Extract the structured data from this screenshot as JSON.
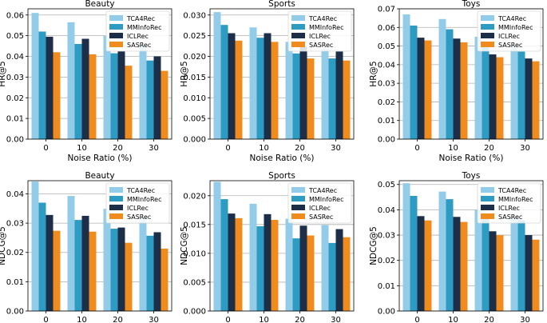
{
  "series_names": [
    "TCA4Rec",
    "MMInfoRec",
    "ICLRec",
    "SASRec"
  ],
  "colors": {
    "TCA4Rec": "#92CCE8",
    "MMInfoRec": "#2E9CC2",
    "ICLRec": "#1C2E48",
    "SASRec": "#F08C1E"
  },
  "chart_data": [
    {
      "type": "bar",
      "title": "Beauty",
      "xlabel": "Noise Ratio (%)",
      "ylabel": "HR@5",
      "categories": [
        "0",
        "10",
        "20",
        "30"
      ],
      "ylim": [
        0,
        0.063
      ],
      "yticks": [
        "0.00",
        "0.01",
        "0.02",
        "0.03",
        "0.04",
        "0.05",
        "0.06"
      ],
      "legend": "top-right",
      "series": [
        {
          "name": "TCA4Rec",
          "values": [
            0.061,
            0.0565,
            0.05,
            0.0455
          ]
        },
        {
          "name": "MMInfoRec",
          "values": [
            0.052,
            0.046,
            0.0415,
            0.038
          ]
        },
        {
          "name": "ICLRec",
          "values": [
            0.0495,
            0.0485,
            0.0425,
            0.04
          ]
        },
        {
          "name": "SASRec",
          "values": [
            0.042,
            0.041,
            0.0355,
            0.033
          ]
        }
      ]
    },
    {
      "type": "bar",
      "title": "Sports",
      "xlabel": "Noise Ratio (%)",
      "ylabel": "HR@5",
      "categories": [
        "0",
        "10",
        "20",
        "30"
      ],
      "ylim": [
        0,
        0.0315
      ],
      "yticks": [
        "0.000",
        "0.005",
        "0.010",
        "0.015",
        "0.020",
        "0.025",
        "0.030"
      ],
      "legend": "top-right",
      "series": [
        {
          "name": "TCA4Rec",
          "values": [
            0.0307,
            0.027,
            0.0235,
            0.0218
          ]
        },
        {
          "name": "MMInfoRec",
          "values": [
            0.0276,
            0.0245,
            0.0207,
            0.0195
          ]
        },
        {
          "name": "ICLRec",
          "values": [
            0.0256,
            0.0256,
            0.0223,
            0.0212
          ]
        },
        {
          "name": "SASRec",
          "values": [
            0.0238,
            0.0235,
            0.0195,
            0.019
          ]
        }
      ]
    },
    {
      "type": "bar",
      "title": "Toys",
      "xlabel": "Noise Ratio (%)",
      "ylabel": "HR@5",
      "categories": [
        "0",
        "10",
        "20",
        "30"
      ],
      "ylim": [
        0,
        0.07
      ],
      "yticks": [
        "0.00",
        "0.01",
        "0.02",
        "0.03",
        "0.04",
        "0.05",
        "0.06",
        "0.07"
      ],
      "legend": "top-right",
      "series": [
        {
          "name": "TCA4Rec",
          "values": [
            0.067,
            0.0645,
            0.055,
            0.05
          ]
        },
        {
          "name": "MMInfoRec",
          "values": [
            0.061,
            0.059,
            0.051,
            0.047
          ]
        },
        {
          "name": "ICLRec",
          "values": [
            0.0545,
            0.054,
            0.0455,
            0.0433
          ]
        },
        {
          "name": "SASRec",
          "values": [
            0.053,
            0.052,
            0.044,
            0.0418
          ]
        }
      ]
    },
    {
      "type": "bar",
      "title": "Beauty",
      "xlabel": "Noise Ratio (%)",
      "ylabel": "NDCG@5",
      "categories": [
        "0",
        "10",
        "20",
        "30"
      ],
      "ylim": [
        0,
        0.0445
      ],
      "yticks": [
        "0.00",
        "0.01",
        "0.02",
        "0.03",
        "0.04"
      ],
      "legend": "top-right",
      "series": [
        {
          "name": "TCA4Rec",
          "values": [
            0.0442,
            0.0393,
            0.0349,
            0.0322
          ]
        },
        {
          "name": "MMInfoRec",
          "values": [
            0.037,
            0.0311,
            0.0281,
            0.0257
          ]
        },
        {
          "name": "ICLRec",
          "values": [
            0.0328,
            0.0325,
            0.0285,
            0.0269
          ]
        },
        {
          "name": "SASRec",
          "values": [
            0.0274,
            0.0271,
            0.0233,
            0.0213
          ]
        }
      ]
    },
    {
      "type": "bar",
      "title": "Sports",
      "xlabel": "Noise Ratio (%)",
      "ylabel": "NDCG@5",
      "categories": [
        "0",
        "10",
        "20",
        "30"
      ],
      "ylim": [
        0,
        0.0226
      ],
      "yticks": [
        "0.000",
        "0.005",
        "0.010",
        "0.015",
        "0.020"
      ],
      "legend": "top-right",
      "series": [
        {
          "name": "TCA4Rec",
          "values": [
            0.0224,
            0.0186,
            0.016,
            0.0149
          ]
        },
        {
          "name": "MMInfoRec",
          "values": [
            0.0194,
            0.0147,
            0.0126,
            0.0118
          ]
        },
        {
          "name": "ICLRec",
          "values": [
            0.0169,
            0.0168,
            0.0148,
            0.0142
          ]
        },
        {
          "name": "SASRec",
          "values": [
            0.0161,
            0.0158,
            0.0131,
            0.0128
          ]
        }
      ]
    },
    {
      "type": "bar",
      "title": "Toys",
      "xlabel": "Noise Ratio (%)",
      "ylabel": "NDCG@5",
      "categories": [
        "0",
        "10",
        "20",
        "30"
      ],
      "ylim": [
        0,
        0.0515
      ],
      "yticks": [
        "0.00",
        "0.01",
        "0.02",
        "0.03",
        "0.04",
        "0.05"
      ],
      "legend": "top-right",
      "series": [
        {
          "name": "TCA4Rec",
          "values": [
            0.0505,
            0.0472,
            0.04,
            0.0375
          ]
        },
        {
          "name": "MMInfoRec",
          "values": [
            0.0455,
            0.0442,
            0.038,
            0.0358
          ]
        },
        {
          "name": "ICLRec",
          "values": [
            0.0375,
            0.0372,
            0.0315,
            0.03
          ]
        },
        {
          "name": "SASRec",
          "values": [
            0.0358,
            0.0352,
            0.03,
            0.0282
          ]
        }
      ]
    }
  ]
}
